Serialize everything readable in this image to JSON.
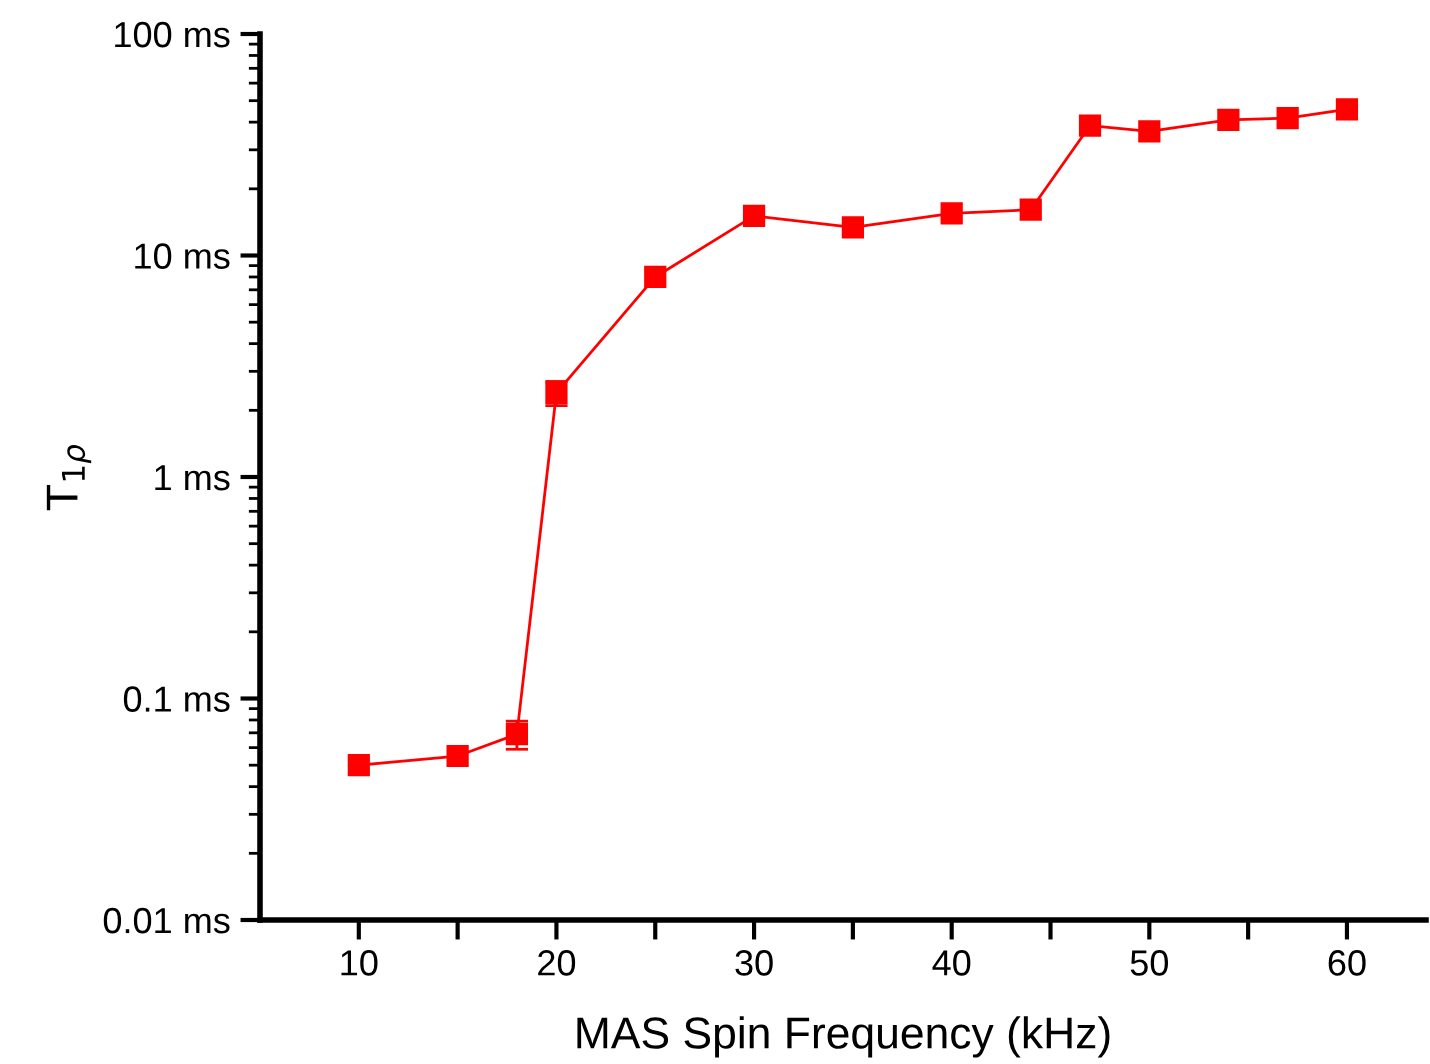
{
  "chart_data": {
    "type": "line",
    "xlabel": "MAS Spin Frequency (kHz)",
    "ylabel": "T$_{1ρ}$",
    "log": "y",
    "x": [
      10,
      15,
      18,
      20,
      25,
      30,
      35,
      40,
      44,
      47,
      50,
      54,
      57,
      60
    ],
    "series": [
      {
        "color": "#ff0000",
        "values": [
          0.05,
          0.055,
          0.069,
          2.4,
          8.0,
          15.1,
          13.4,
          15.5,
          16.1,
          38.6,
          36.3,
          41,
          41.7,
          45.7
        ],
        "errors": [
          null,
          null,
          0.01,
          0.3,
          null,
          null,
          null,
          null,
          null,
          null,
          null,
          null,
          null,
          null
        ]
      }
    ],
    "marker": "square",
    "line_style": "solid",
    "grid": false,
    "xlim": [
      5,
      64
    ],
    "xticks": [
      10,
      {
        "value": 15,
        "label": null
      },
      20,
      {
        "value": 25,
        "label": null
      },
      30,
      {
        "value": 35,
        "label": null
      },
      40,
      {
        "value": 45,
        "label": null
      },
      50,
      {
        "value": 55,
        "label": null
      },
      60
    ],
    "ylim": [
      0.01,
      100
    ],
    "yticks": [
      {
        "value": 0.01,
        "label": "0.01 ms"
      },
      {
        "value": 0.1,
        "label": "0.1 ms"
      },
      {
        "value": 1,
        "label": "1 ms"
      },
      {
        "value": 10,
        "label": "10 ms"
      },
      {
        "value": 100,
        "label": "100 ms"
      }
    ]
  }
}
